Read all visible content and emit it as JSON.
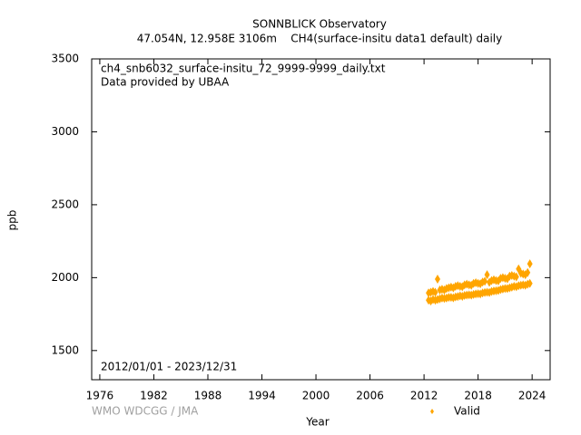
{
  "chart_data": {
    "type": "scatter",
    "title": "SONNBLICK Observatory",
    "subtitle": "47.054N, 12.958E 3106m    CH4(surface-insitu data1 default) daily",
    "xlabel": "Year",
    "ylabel": "ppb",
    "annotations": [
      "ch4_snb6032_surface-insitu_72_9999-9999_daily.txt",
      "Data provided by UBAA",
      "2012/01/01 - 2023/12/31",
      "WMO WDCGG / JMA"
    ],
    "xlim": [
      1975.1,
      2026
    ],
    "ylim": [
      1300,
      3500
    ],
    "xticks": [
      1976,
      1982,
      1988,
      1994,
      2000,
      2006,
      2012,
      2018,
      2024
    ],
    "yticks": [
      1500,
      2000,
      2500,
      3000,
      3500
    ],
    "x": [
      2012.5,
      2012.5,
      2012.75,
      2012.75,
      2013,
      2013,
      2013.25,
      2013.25,
      2013.5,
      2013.5,
      2013.75,
      2013.75,
      2014,
      2014,
      2014.25,
      2014.25,
      2014.5,
      2014.5,
      2014.75,
      2014.75,
      2015,
      2015,
      2015.25,
      2015.25,
      2015.5,
      2015.5,
      2015.75,
      2015.75,
      2016,
      2016,
      2016.25,
      2016.25,
      2016.5,
      2016.5,
      2016.75,
      2016.75,
      2017,
      2017,
      2017.25,
      2017.25,
      2017.5,
      2017.5,
      2017.75,
      2017.75,
      2018,
      2018,
      2018.25,
      2018.25,
      2018.5,
      2018.5,
      2018.75,
      2018.75,
      2019,
      2019,
      2019.25,
      2019.25,
      2019.5,
      2019.5,
      2019.75,
      2019.75,
      2020,
      2020,
      2020.25,
      2020.25,
      2020.5,
      2020.5,
      2020.75,
      2020.75,
      2021,
      2021,
      2021.25,
      2021.25,
      2021.5,
      2021.5,
      2021.75,
      2021.75,
      2022,
      2022,
      2022.25,
      2022.25,
      2022.5,
      2022.5,
      2022.75,
      2022.75,
      2023,
      2023,
      2023.25,
      2023.25,
      2023.5,
      2023.5,
      2023.75,
      2023.75
    ],
    "series": [
      {
        "name": "Valid",
        "color": "#ffa500",
        "values": [
          1845,
          1895,
          1840,
          1900,
          1850,
          1905,
          1845,
          1900,
          1850,
          1990,
          1855,
          1915,
          1860,
          1920,
          1858,
          1915,
          1860,
          1925,
          1865,
          1930,
          1865,
          1935,
          1862,
          1930,
          1868,
          1940,
          1870,
          1945,
          1875,
          1940,
          1872,
          1938,
          1878,
          1950,
          1880,
          1955,
          1882,
          1950,
          1880,
          1948,
          1885,
          1960,
          1888,
          1965,
          1890,
          1960,
          1888,
          1958,
          1895,
          1970,
          1898,
          1975,
          1900,
          2020,
          1898,
          1968,
          1905,
          1980,
          1908,
          1985,
          1910,
          1980,
          1912,
          1978,
          1918,
          1995,
          1922,
          2000,
          1925,
          1995,
          1925,
          1992,
          1930,
          2010,
          1935,
          2015,
          1940,
          2010,
          1938,
          2005,
          1945,
          2060,
          1948,
          2030,
          1950,
          2025,
          1948,
          2020,
          1955,
          2035,
          1960,
          2095
        ]
      }
    ]
  }
}
